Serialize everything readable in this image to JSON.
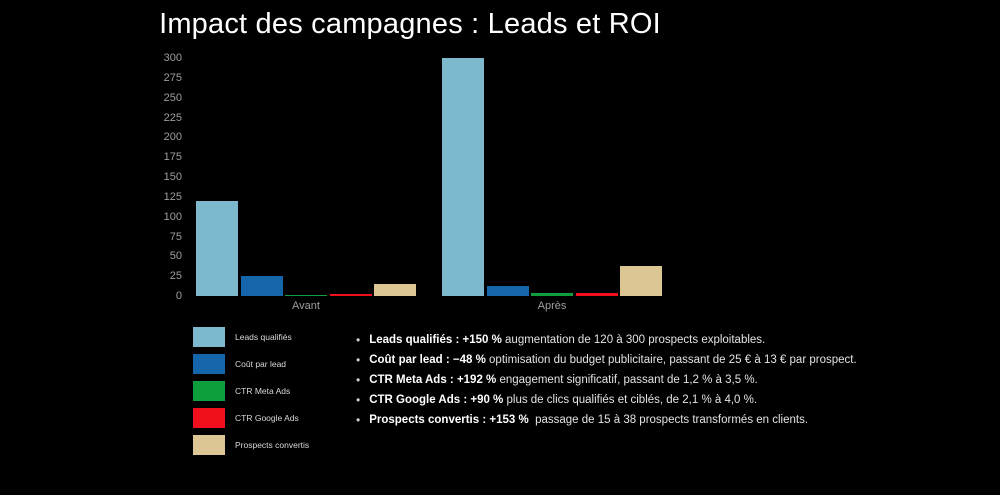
{
  "title": "Impact des campagnes : Leads et ROI",
  "colors": {
    "background": "#000000",
    "axis_text": "#9e9e9e",
    "legend_text": "#d9d9d9",
    "bullet_text": "#e3e3e3",
    "bullet_bold": "#ffffff",
    "title_text": "#ffffff"
  },
  "chart_data": {
    "type": "bar",
    "title": "Impact des campagnes : Leads et ROI",
    "categories": [
      "Avant",
      "Après"
    ],
    "series": [
      {
        "name": "Leads qualifiés",
        "color": "#7db8cd",
        "values": [
          120,
          300
        ]
      },
      {
        "name": "Coût par lead",
        "color": "#1565ab",
        "values": [
          25,
          13
        ]
      },
      {
        "name": "CTR Meta Ads",
        "color": "#0f9e3c",
        "values": [
          1.2,
          3.5
        ]
      },
      {
        "name": "CTR Google Ads",
        "color": "#f10e1d",
        "values": [
          2.1,
          4.0
        ]
      },
      {
        "name": "Prospects convertis",
        "color": "#dcc794",
        "values": [
          15,
          38
        ]
      }
    ],
    "xlabel": "",
    "ylabel": "",
    "ylim": [
      0,
      300
    ],
    "yticks": [
      0,
      25,
      50,
      75,
      100,
      125,
      150,
      175,
      200,
      225,
      250,
      275,
      300
    ],
    "grid": false,
    "legend_position": "bottom-left"
  },
  "bullets": [
    {
      "bold": "Leads qualifiés : +150 %",
      "text": " augmentation de 120 à 300 prospects exploitables."
    },
    {
      "bold": "Coût par lead : −48 %",
      "text": " optimisation du budget publicitaire, passant de 25 € à 13 € par prospect."
    },
    {
      "bold": "CTR Meta Ads : +192 %",
      "text": " engagement significatif, passant de 1,2 % à 3,5 %."
    },
    {
      "bold": "CTR Google Ads : +90 %",
      "text": " plus de clics qualifiés et ciblés, de 2,1 % à 4,0 %."
    },
    {
      "bold": "Prospects convertis : +153 %",
      "text": "  passage de 15 à 38 prospects transformés en clients."
    }
  ]
}
